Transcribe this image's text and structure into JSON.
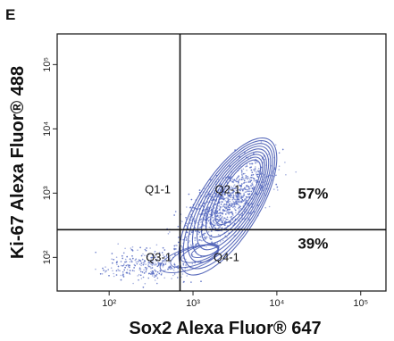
{
  "panel_label": "E",
  "chart_data": {
    "type": "scatter",
    "xlabel": "Sox2 Alexa Fluor® 647",
    "ylabel": "Ki-67 Alexa Fluor® 488",
    "x_scale": "log",
    "y_scale": "log",
    "xlim": [
      24,
      200000
    ],
    "ylim": [
      30,
      300000
    ],
    "x_ticks": [
      {
        "value": 100,
        "label": "10²"
      },
      {
        "value": 1000,
        "label": "10³"
      },
      {
        "value": 10000,
        "label": "10⁴"
      },
      {
        "value": 100000,
        "label": "10⁵"
      }
    ],
    "y_ticks": [
      {
        "value": 100,
        "label": "10²"
      },
      {
        "value": 1000,
        "label": "10³"
      },
      {
        "value": 10000,
        "label": "10⁴"
      },
      {
        "value": 100000,
        "label": "10⁵"
      }
    ],
    "gate": {
      "x": 700,
      "y": 270
    },
    "quadrants": [
      {
        "name": "Q1-1",
        "x": 380,
        "y": 1000
      },
      {
        "name": "Q2-1",
        "x": 2600,
        "y": 1000
      },
      {
        "name": "Q3-1",
        "x": 390,
        "y": 88
      },
      {
        "name": "Q4-1",
        "x": 2500,
        "y": 88
      }
    ],
    "percentages": [
      {
        "label": "57%",
        "x": 27000,
        "y": 820
      },
      {
        "label": "39%",
        "x": 27000,
        "y": 136
      }
    ],
    "dot_color": "#5b6fc4",
    "contour_color": "#4a5db5",
    "grid": false
  }
}
